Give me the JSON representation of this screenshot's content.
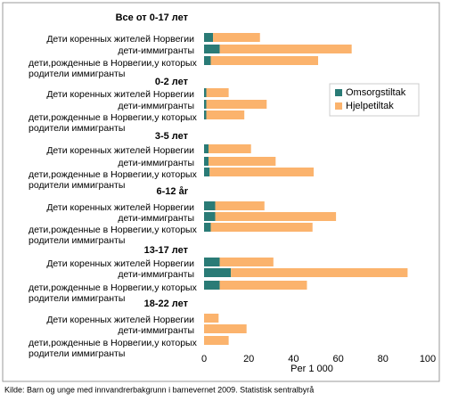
{
  "chart_data": {
    "type": "bar",
    "orientation": "horizontal",
    "stacked": true,
    "groups": [
      "Все от 0-17 лет",
      "0-2 лет",
      "3-5 лет",
      "6-12 år",
      "13-17 лет",
      "18-22 лет"
    ],
    "categories": [
      "Дети коренных жителей Норвегии",
      "дети-иммигранты",
      "дети,рожденные в Норвегии,у которых родители иммигранты",
      "Дети коренных жителей Норвегии",
      "дети-иммигранты",
      "дети,рожденные в Норвегии,у которых родители иммигранты",
      "Дети коренных жителей Норвегии",
      "дети-иммигранты",
      "дети,рожденные в Норвегии,у которых родители иммигранты",
      "Дети коренных жителей Норвегии",
      "дети-иммигранты",
      "дети,рожденные в Норвегии,у которых родители иммигранты",
      "Дети коренных жителей Норвегии",
      "дети-иммигранты",
      "дети,рожденные в Норвегии,у которых родители иммигранты",
      "Дети коренных жителей Норвегии",
      "дети-иммигранты",
      "дети,рожденные в Норвегии,у которых родители иммигранты"
    ],
    "series": [
      {
        "name": "Omsorgstiltak",
        "color": "#2a7b76",
        "values": [
          4,
          7,
          3,
          1,
          1,
          1,
          2,
          2,
          2.5,
          5,
          5,
          3,
          7,
          12,
          7,
          0,
          0,
          0
        ]
      },
      {
        "name": "Hjelpetiltak",
        "color": "#fbb36d",
        "values": [
          21,
          59,
          48,
          10,
          27,
          17,
          19,
          30,
          46.5,
          22,
          54,
          45.5,
          24,
          79,
          39,
          6.5,
          19,
          11
        ]
      }
    ],
    "xlabel": "Per 1 000",
    "xlim": [
      0,
      100
    ],
    "xticks": [
      0,
      20,
      40,
      60,
      80,
      100
    ],
    "legend": "upper right",
    "source": "Kilde: Barn og unge med innvandrerbakgrunn i barnevernet 2009. Statistisk sentralbyrå"
  }
}
